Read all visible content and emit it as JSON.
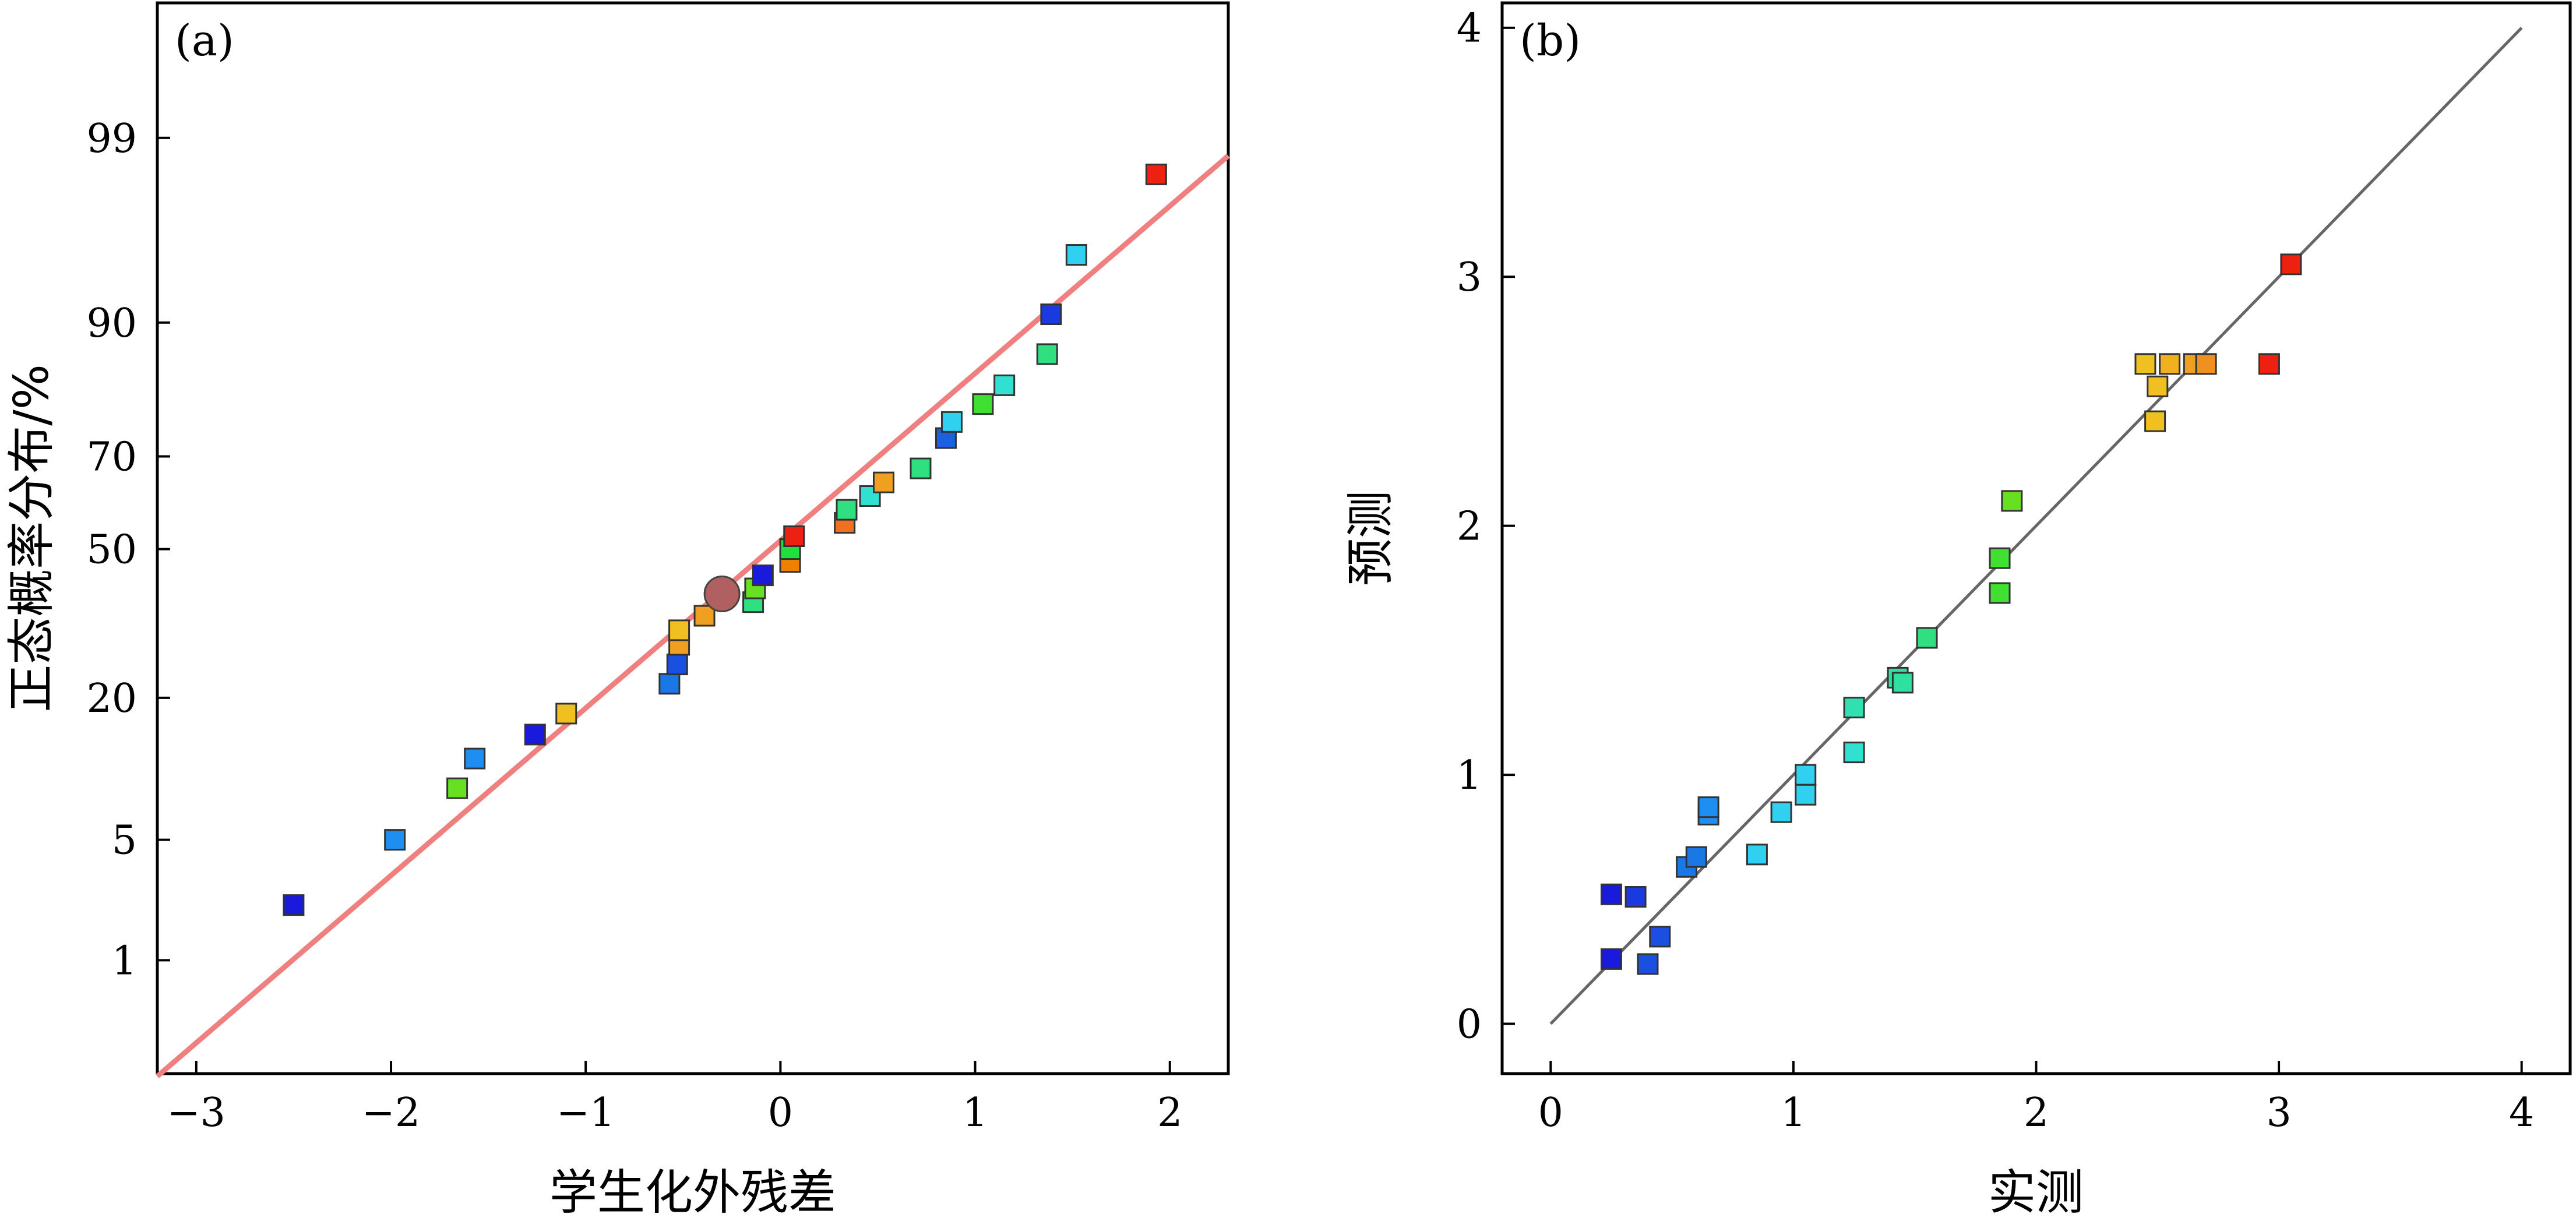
{
  "chart_data": [
    {
      "type": "scatter",
      "panel_label": "(a)",
      "title": "",
      "xlabel": "学生化外残差",
      "ylabel": "正态概率分布/%",
      "xlim": [
        -3.2,
        2.3
      ],
      "x_ticks": [
        -3,
        -2,
        -1,
        0,
        1,
        2
      ],
      "x_tick_labels": [
        "−3",
        "−2",
        "−1",
        "0",
        "1",
        "2"
      ],
      "y_scale": "normal-probability",
      "ylim_percent": [
        0.15,
        99.9
      ],
      "y_ticks": [
        1,
        5,
        20,
        50,
        70,
        90,
        99
      ],
      "y_tick_labels": [
        "1",
        "5",
        "20",
        "50",
        "70",
        "90",
        "99"
      ],
      "grid": false,
      "legend": "none",
      "fit_line": {
        "x": [
          -3.2,
          2.3
        ],
        "color": "#f08080"
      },
      "highlight_point": {
        "x": -0.3,
        "y": 40,
        "color": "#b06060"
      },
      "points": [
        {
          "x": -2.5,
          "y": 2.2,
          "color": "#1a1adc"
        },
        {
          "x": -1.98,
          "y": 5.0,
          "color": "#1e8ff0"
        },
        {
          "x": -1.66,
          "y": 8.8,
          "color": "#66e020"
        },
        {
          "x": -1.57,
          "y": 11.8,
          "color": "#1e8ff0"
        },
        {
          "x": -1.26,
          "y": 14.7,
          "color": "#1a1adc"
        },
        {
          "x": -1.1,
          "y": 17.6,
          "color": "#f0c020"
        },
        {
          "x": -0.57,
          "y": 22.3,
          "color": "#1a78e6"
        },
        {
          "x": -0.53,
          "y": 25.7,
          "color": "#1a50e0"
        },
        {
          "x": -0.52,
          "y": 29.4,
          "color": "#f0a020"
        },
        {
          "x": -0.52,
          "y": 32.3,
          "color": "#f0c020"
        },
        {
          "x": -0.39,
          "y": 35.3,
          "color": "#f0a020"
        },
        {
          "x": -0.14,
          "y": 38.2,
          "color": "#30e080"
        },
        {
          "x": -0.13,
          "y": 41.2,
          "color": "#66e020"
        },
        {
          "x": -0.09,
          "y": 44.1,
          "color": "#1a1adc"
        },
        {
          "x": 0.05,
          "y": 47.1,
          "color": "#f08000"
        },
        {
          "x": 0.05,
          "y": 50.0,
          "color": "#20e040"
        },
        {
          "x": 0.07,
          "y": 52.9,
          "color": "#ee2010"
        },
        {
          "x": 0.33,
          "y": 55.9,
          "color": "#f07020"
        },
        {
          "x": 0.34,
          "y": 58.8,
          "color": "#30e080"
        },
        {
          "x": 0.46,
          "y": 61.8,
          "color": "#30e0d0"
        },
        {
          "x": 0.53,
          "y": 64.7,
          "color": "#f0a020"
        },
        {
          "x": 0.72,
          "y": 67.6,
          "color": "#30e080"
        },
        {
          "x": 0.85,
          "y": 73.5,
          "color": "#1a60e0"
        },
        {
          "x": 0.88,
          "y": 76.4,
          "color": "#30d0f0"
        },
        {
          "x": 1.04,
          "y": 79.4,
          "color": "#40e030"
        },
        {
          "x": 1.15,
          "y": 82.3,
          "color": "#30e0d0"
        },
        {
          "x": 1.37,
          "y": 86.5,
          "color": "#30e080"
        },
        {
          "x": 1.39,
          "y": 90.8,
          "color": "#1a3ae0"
        },
        {
          "x": 1.52,
          "y": 95.2,
          "color": "#30d0f0"
        },
        {
          "x": 1.93,
          "y": 98.3,
          "color": "#ee2010"
        }
      ]
    },
    {
      "type": "scatter",
      "panel_label": "(b)",
      "title": "",
      "xlabel": "实测",
      "ylabel": "预测",
      "xlim": [
        -0.2,
        4.2
      ],
      "ylim": [
        -0.2,
        4.1
      ],
      "x_ticks": [
        0,
        1,
        2,
        3,
        4
      ],
      "x_tick_labels": [
        "0",
        "1",
        "2",
        "3",
        "4"
      ],
      "y_ticks": [
        0,
        1,
        2,
        3,
        4
      ],
      "y_tick_labels": [
        "0",
        "1",
        "2",
        "3",
        "4"
      ],
      "grid": false,
      "legend": "none",
      "reference_line": {
        "x": [
          0,
          4
        ],
        "y": [
          0,
          4
        ],
        "color": "#666666"
      },
      "points": [
        {
          "x": 0.25,
          "y": 0.52,
          "color": "#1a1adc"
        },
        {
          "x": 0.35,
          "y": 0.51,
          "color": "#1a3ae0"
        },
        {
          "x": 0.25,
          "y": 0.26,
          "color": "#1a1adc"
        },
        {
          "x": 0.4,
          "y": 0.24,
          "color": "#1a50e0"
        },
        {
          "x": 0.45,
          "y": 0.35,
          "color": "#1a50e0"
        },
        {
          "x": 0.56,
          "y": 0.63,
          "color": "#1a78e6"
        },
        {
          "x": 0.6,
          "y": 0.67,
          "color": "#1a78e6"
        },
        {
          "x": 0.65,
          "y": 0.84,
          "color": "#1e8ff0"
        },
        {
          "x": 0.65,
          "y": 0.87,
          "color": "#1e8ff0"
        },
        {
          "x": 0.85,
          "y": 0.68,
          "color": "#30d0f0"
        },
        {
          "x": 0.95,
          "y": 0.85,
          "color": "#30d0f0"
        },
        {
          "x": 1.05,
          "y": 0.92,
          "color": "#30d0f0"
        },
        {
          "x": 1.05,
          "y": 1.0,
          "color": "#30d0f0"
        },
        {
          "x": 1.25,
          "y": 1.09,
          "color": "#30e0d0"
        },
        {
          "x": 1.25,
          "y": 1.27,
          "color": "#30e0b0"
        },
        {
          "x": 1.43,
          "y": 1.39,
          "color": "#30e0a0"
        },
        {
          "x": 1.45,
          "y": 1.37,
          "color": "#30e0a0"
        },
        {
          "x": 1.55,
          "y": 1.55,
          "color": "#30e080"
        },
        {
          "x": 1.85,
          "y": 1.73,
          "color": "#40e030"
        },
        {
          "x": 1.85,
          "y": 1.87,
          "color": "#40e030"
        },
        {
          "x": 1.9,
          "y": 2.1,
          "color": "#66e020"
        },
        {
          "x": 2.45,
          "y": 2.65,
          "color": "#f0c020"
        },
        {
          "x": 2.5,
          "y": 2.56,
          "color": "#f0c020"
        },
        {
          "x": 2.49,
          "y": 2.42,
          "color": "#f0c020"
        },
        {
          "x": 2.55,
          "y": 2.65,
          "color": "#f0b020"
        },
        {
          "x": 2.65,
          "y": 2.65,
          "color": "#f0a020"
        },
        {
          "x": 2.7,
          "y": 2.65,
          "color": "#f09020"
        },
        {
          "x": 2.96,
          "y": 2.65,
          "color": "#ee2010"
        },
        {
          "x": 3.05,
          "y": 3.05,
          "color": "#ee2010"
        }
      ]
    }
  ]
}
